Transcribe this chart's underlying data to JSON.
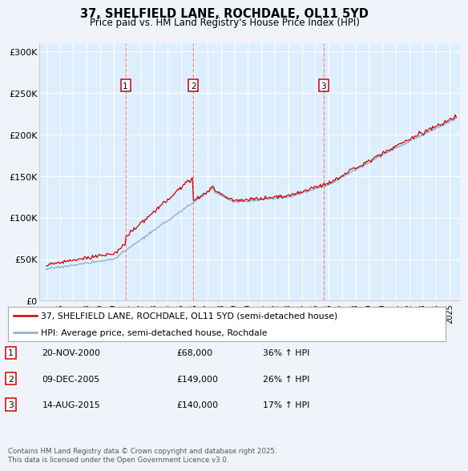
{
  "title1": "37, SHELFIELD LANE, ROCHDALE, OL11 5YD",
  "title2": "Price paid vs. HM Land Registry's House Price Index (HPI)",
  "ylim": [
    0,
    310000
  ],
  "yticks": [
    0,
    50000,
    100000,
    150000,
    200000,
    250000,
    300000
  ],
  "ytick_labels": [
    "£0",
    "£50K",
    "£100K",
    "£150K",
    "£200K",
    "£250K",
    "£300K"
  ],
  "plot_bg_color": "#ddeeff",
  "fig_bg_color": "#f0f4fa",
  "grid_color": "#ffffff",
  "sale1_date": 2000.89,
  "sale1_price": 68000,
  "sale1_label": "1",
  "sale2_date": 2005.94,
  "sale2_price": 149000,
  "sale2_label": "2",
  "sale3_date": 2015.62,
  "sale3_price": 140000,
  "sale3_label": "3",
  "red_line_color": "#cc0000",
  "blue_line_color": "#88aacc",
  "vline_color": "#ee8888",
  "legend_entries": [
    "37, SHELFIELD LANE, ROCHDALE, OL11 5YD (semi-detached house)",
    "HPI: Average price, semi-detached house, Rochdale"
  ],
  "table_data": [
    [
      "1",
      "20-NOV-2000",
      "£68,000",
      "36% ↑ HPI"
    ],
    [
      "2",
      "09-DEC-2005",
      "£149,000",
      "26% ↑ HPI"
    ],
    [
      "3",
      "14-AUG-2015",
      "£140,000",
      "17% ↑ HPI"
    ]
  ],
  "footnote": "Contains HM Land Registry data © Crown copyright and database right 2025.\nThis data is licensed under the Open Government Licence v3.0.",
  "xmin": 1994.5,
  "xmax": 2025.8,
  "xticks": [
    1995,
    1996,
    1997,
    1998,
    1999,
    2000,
    2001,
    2002,
    2003,
    2004,
    2005,
    2006,
    2007,
    2008,
    2009,
    2010,
    2011,
    2012,
    2013,
    2014,
    2015,
    2016,
    2017,
    2018,
    2019,
    2020,
    2021,
    2022,
    2023,
    2024,
    2025
  ]
}
